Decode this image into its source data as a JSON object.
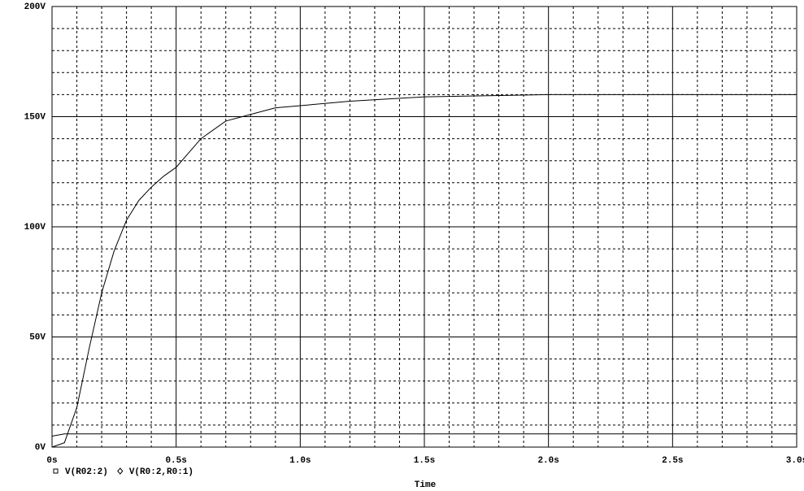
{
  "chart_data": {
    "type": "line",
    "x_label": "Time",
    "x": [
      0,
      0.05,
      0.1,
      0.15,
      0.2,
      0.25,
      0.3,
      0.35,
      0.4,
      0.45,
      0.5,
      0.6,
      0.7,
      0.8,
      0.9,
      1.0,
      1.2,
      1.5,
      2.0,
      2.5,
      3.0
    ],
    "series": [
      {
        "name": "V(R02:2)",
        "color": "#000000",
        "marker": "square",
        "values": [
          0,
          2,
          18,
          45,
          70,
          89,
          103,
          112,
          118,
          123,
          127,
          140,
          148,
          151,
          154,
          155,
          157,
          159,
          160,
          160,
          160
        ]
      },
      {
        "name": "V(R0:2,R0:1)",
        "color": "#000000",
        "marker": "diamond",
        "values": [
          5,
          6,
          6,
          6,
          6,
          6,
          6,
          6,
          6,
          6,
          6,
          6,
          6,
          6,
          6,
          6,
          6,
          6,
          6,
          6,
          6
        ]
      }
    ],
    "xlim": [
      0,
      3.0
    ],
    "ylim": [
      0,
      200
    ],
    "xticks": [
      {
        "value": 0,
        "label": "0s"
      },
      {
        "value": 0.5,
        "label": "0.5s"
      },
      {
        "value": 1.0,
        "label": "1.0s"
      },
      {
        "value": 1.5,
        "label": "1.5s"
      },
      {
        "value": 2.0,
        "label": "2.0s"
      },
      {
        "value": 2.5,
        "label": "2.5s"
      },
      {
        "value": 3.0,
        "label": "3.0s"
      }
    ],
    "yticks": [
      {
        "value": 0,
        "label": "0V"
      },
      {
        "value": 50,
        "label": "50V"
      },
      {
        "value": 100,
        "label": "100V"
      },
      {
        "value": 150,
        "label": "150V"
      },
      {
        "value": 200,
        "label": "200V"
      }
    ],
    "xminor": [
      0.1,
      0.2,
      0.3,
      0.4,
      0.6,
      0.7,
      0.8,
      0.9,
      1.1,
      1.2,
      1.3,
      1.4,
      1.6,
      1.7,
      1.8,
      1.9,
      2.1,
      2.2,
      2.3,
      2.4,
      2.6,
      2.7,
      2.8,
      2.9
    ],
    "yminor": [
      10,
      20,
      30,
      40,
      60,
      70,
      80,
      90,
      110,
      120,
      130,
      140,
      160,
      170,
      180,
      190
    ],
    "grid": true,
    "legend": "bottom-left"
  }
}
